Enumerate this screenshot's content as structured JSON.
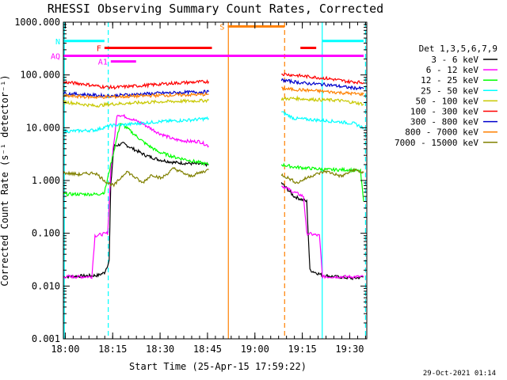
{
  "chart_data": {
    "type": "line",
    "title": "RHESSI Observing Summary Count Rates, Corrected",
    "xlabel": "Start Time (25-Apr-15 17:59:22)",
    "ylabel": "Corrected Count Rate (s⁻¹ detector⁻¹)",
    "x_range_minutes": [
      0,
      96
    ],
    "ylim": [
      0.001,
      1000
    ],
    "y_scale": "log",
    "grid": false,
    "legend_position": "right",
    "x_ticks": [
      {
        "label": "18:00",
        "minutes": 0.6
      },
      {
        "label": "18:15",
        "minutes": 15.6
      },
      {
        "label": "18:30",
        "minutes": 30.6
      },
      {
        "label": "18:45",
        "minutes": 45.6
      },
      {
        "label": "19:00",
        "minutes": 60.6
      },
      {
        "label": "19:15",
        "minutes": 75.6
      },
      {
        "label": "19:30",
        "minutes": 90.6
      }
    ],
    "y_ticks": [
      {
        "label": "1000.000",
        "value": 1000
      },
      {
        "label": "100.000",
        "value": 100
      },
      {
        "label": "10.000",
        "value": 10
      },
      {
        "label": "1.000",
        "value": 1
      },
      {
        "label": "0.100",
        "value": 0.1
      },
      {
        "label": "0.010",
        "value": 0.01
      },
      {
        "label": "0.001",
        "value": 0.001
      }
    ],
    "legend_header": "Det 1,3,5,6,7,9",
    "series": [
      {
        "name": "3 - 6 keV",
        "color": "#000000",
        "segments": [
          [
            [
              0,
              0.015
            ],
            [
              11,
              0.016
            ],
            [
              13,
              0.018
            ],
            [
              14.5,
              0.03
            ],
            [
              15,
              0.8
            ],
            [
              16,
              4.5
            ],
            [
              19,
              5
            ],
            [
              22,
              4
            ],
            [
              26,
              3
            ],
            [
              30,
              2.5
            ],
            [
              35,
              2.2
            ],
            [
              40,
              2.1
            ],
            [
              46,
              2
            ]
          ],
          [
            [
              69,
              0.9
            ],
            [
              73,
              0.5
            ],
            [
              77,
              0.4
            ],
            [
              78,
              0.02
            ],
            [
              82,
              0.016
            ],
            [
              86,
              0.015
            ],
            [
              92,
              0.014
            ],
            [
              95,
              0.015
            ]
          ]
        ]
      },
      {
        "name": "6 - 12 keV",
        "color": "#ff00ff",
        "segments": [
          [
            [
              0,
              0.015
            ],
            [
              9,
              0.015
            ],
            [
              10,
              0.09
            ],
            [
              14,
              0.1
            ],
            [
              15,
              1.5
            ],
            [
              17,
              18
            ],
            [
              20,
              16
            ],
            [
              25,
              12
            ],
            [
              30,
              8
            ],
            [
              35,
              6
            ],
            [
              40,
              5.5
            ],
            [
              43,
              5.5
            ],
            [
              46,
              4.5
            ]
          ],
          [
            [
              69,
              0.8
            ],
            [
              73,
              0.6
            ],
            [
              76,
              0.5
            ],
            [
              77,
              0.1
            ],
            [
              81,
              0.09
            ],
            [
              82,
              0.015
            ],
            [
              86,
              0.015
            ],
            [
              91,
              0.015
            ],
            [
              95,
              0.015
            ]
          ]
        ]
      },
      {
        "name": "12 - 25 keV",
        "color": "#00ff00",
        "segments": [
          [
            [
              0,
              0.55
            ],
            [
              11,
              0.55
            ],
            [
              13,
              0.6
            ],
            [
              15,
              2
            ],
            [
              18,
              12
            ],
            [
              20,
              10
            ],
            [
              23,
              7
            ],
            [
              26,
              5
            ],
            [
              30,
              3.5
            ],
            [
              35,
              2.8
            ],
            [
              40,
              2.4
            ],
            [
              46,
              2
            ]
          ],
          [
            [
              69,
              2
            ],
            [
              73,
              1.8
            ],
            [
              78,
              1.7
            ],
            [
              84,
              1.6
            ],
            [
              90,
              1.6
            ],
            [
              94,
              1.5
            ],
            [
              95,
              0.4
            ]
          ]
        ]
      },
      {
        "name": "25 - 50 keV",
        "color": "#00ffff",
        "segments": [
          [
            [
              0,
              8.5
            ],
            [
              10,
              9
            ],
            [
              15,
              11
            ],
            [
              20,
              11.5
            ],
            [
              30,
              13
            ],
            [
              40,
              14
            ],
            [
              46,
              15
            ]
          ],
          [
            [
              69,
              20
            ],
            [
              73,
              15
            ],
            [
              80,
              14
            ],
            [
              87,
              13
            ],
            [
              92,
              12
            ],
            [
              95,
              10
            ]
          ]
        ]
      },
      {
        "name": "50 - 100 keV",
        "color": "#c8c800",
        "segments": [
          [
            [
              0,
              31
            ],
            [
              10,
              26
            ],
            [
              15,
              28
            ],
            [
              20,
              29
            ],
            [
              30,
              31
            ],
            [
              40,
              32
            ],
            [
              46,
              33
            ]
          ],
          [
            [
              69,
              35
            ],
            [
              73,
              36
            ],
            [
              80,
              34
            ],
            [
              87,
              33
            ],
            [
              92,
              30
            ],
            [
              95,
              28
            ]
          ]
        ]
      },
      {
        "name": "100 - 300 keV",
        "color": "#ff0000",
        "segments": [
          [
            [
              0,
              73
            ],
            [
              6,
              68
            ],
            [
              12,
              60
            ],
            [
              16,
              58
            ],
            [
              25,
              63
            ],
            [
              35,
              70
            ],
            [
              46,
              75
            ]
          ],
          [
            [
              69,
              105
            ],
            [
              76,
              95
            ],
            [
              84,
              85
            ],
            [
              90,
              75
            ],
            [
              95,
              72
            ]
          ]
        ]
      },
      {
        "name": "300 - 800 keV",
        "color": "#0000cc",
        "segments": [
          [
            [
              0,
              45
            ],
            [
              8,
              42
            ],
            [
              14,
              40
            ],
            [
              20,
              42
            ],
            [
              30,
              45
            ],
            [
              40,
              47
            ],
            [
              46,
              48
            ]
          ],
          [
            [
              69,
              80
            ],
            [
              76,
              70
            ],
            [
              84,
              65
            ],
            [
              90,
              58
            ],
            [
              95,
              55
            ]
          ]
        ]
      },
      {
        "name": "800 - 7000 keV",
        "color": "#ff8000",
        "segments": [
          [
            [
              0,
              40
            ],
            [
              10,
              38
            ],
            [
              20,
              39
            ],
            [
              30,
              41
            ],
            [
              40,
              42
            ],
            [
              46,
              43
            ]
          ],
          [
            [
              69,
              55
            ],
            [
              80,
              50
            ],
            [
              90,
              45
            ],
            [
              95,
              43
            ]
          ]
        ]
      },
      {
        "name": "7000 - 15000 keV",
        "color": "#808000",
        "segments": [
          [
            [
              0,
              1.4
            ],
            [
              5,
              1.3
            ],
            [
              10,
              1.4
            ],
            [
              14,
              0.9
            ],
            [
              16,
              0.8
            ],
            [
              20,
              1.5
            ],
            [
              25,
              0.9
            ],
            [
              28,
              1.3
            ],
            [
              31,
              1.1
            ],
            [
              35,
              1.7
            ],
            [
              40,
              1.2
            ],
            [
              46,
              1.6
            ]
          ],
          [
            [
              69,
              1.3
            ],
            [
              74,
              0.9
            ],
            [
              78,
              1.2
            ],
            [
              83,
              1.5
            ],
            [
              88,
              1.2
            ],
            [
              92,
              1.6
            ],
            [
              95,
              1.4
            ]
          ]
        ]
      }
    ],
    "annotations": {
      "flags": [
        {
          "label": "N",
          "color": "#00ffff",
          "value": 440,
          "bars": [
            [
              0,
              13
            ],
            [
              82,
              95
            ]
          ]
        },
        {
          "label": "F",
          "color": "#ff0000",
          "value": 325,
          "bars": [
            [
              13,
              47
            ],
            [
              75,
              80
            ]
          ]
        },
        {
          "label": "S",
          "color": "#ff8000",
          "value": 830,
          "bars": [
            [
              52,
              70
            ]
          ]
        },
        {
          "label": "AQ",
          "color": "#ff00ff",
          "value": 230,
          "bars": [
            [
              0,
              95
            ]
          ]
        },
        {
          "label": "A1",
          "color": "#ff00ff",
          "value": 180,
          "bars": [
            [
              15,
              23
            ]
          ]
        }
      ],
      "vlines": [
        {
          "minutes": 0.3,
          "color": "#00ffff",
          "style": "solid"
        },
        {
          "minutes": 14.2,
          "color": "#00ffff",
          "style": "dashed"
        },
        {
          "minutes": 52.2,
          "color": "#ff8000",
          "style": "solid"
        },
        {
          "minutes": 70,
          "color": "#ff8000",
          "style": "dashed"
        },
        {
          "minutes": 81.9,
          "color": "#00ffff",
          "style": "solid"
        },
        {
          "minutes": 95.6,
          "color": "#00ffff",
          "style": "dashed"
        }
      ]
    },
    "timestamp": "29-Oct-2021 01:14"
  }
}
